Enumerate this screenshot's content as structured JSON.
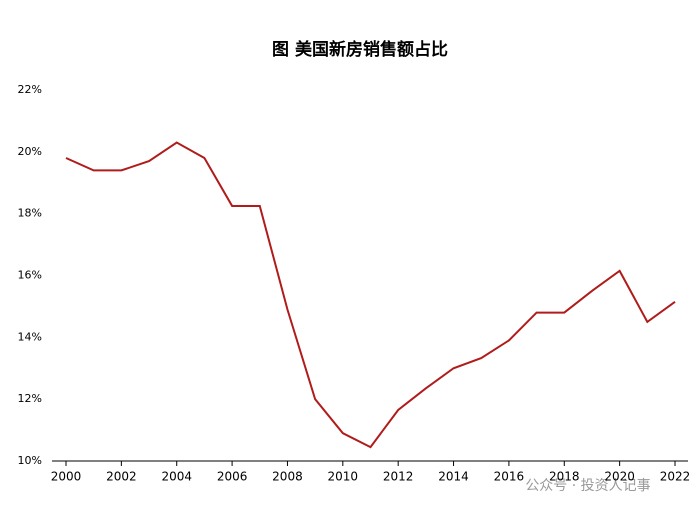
{
  "chart_data": {
    "type": "line",
    "title": "图 美国新房销售额占比",
    "x": [
      2000,
      2001,
      2002,
      2003,
      2004,
      2005,
      2006,
      2007,
      2008,
      2009,
      2010,
      2011,
      2012,
      2013,
      2014,
      2015,
      2016,
      2017,
      2018,
      2019,
      2020,
      2021,
      2022
    ],
    "series": [
      {
        "name": null,
        "color": "#b01c1c",
        "values": [
          19.8,
          19.4,
          19.4,
          19.7,
          20.3,
          19.8,
          18.25,
          18.25,
          14.9,
          12.0,
          10.9,
          10.45,
          11.65,
          12.35,
          13.0,
          13.33,
          13.9,
          14.8,
          14.8,
          15.5,
          16.15,
          14.5,
          15.15
        ]
      }
    ],
    "xlim": [
      2000,
      2022
    ],
    "xticks": [
      2000,
      2002,
      2004,
      2006,
      2008,
      2010,
      2012,
      2014,
      2016,
      2018,
      2020,
      2022
    ],
    "ylim": [
      10,
      22
    ],
    "yticks": [
      {
        "value": 10,
        "label": "10%"
      },
      {
        "value": 12,
        "label": "12%"
      },
      {
        "value": 14,
        "label": "14%"
      },
      {
        "value": 16,
        "label": "16%"
      },
      {
        "value": 18,
        "label": "18%"
      },
      {
        "value": 20,
        "label": "20%"
      },
      {
        "value": 22,
        "label": "22%"
      }
    ],
    "grid": false,
    "watermark": "公众号 · 投资人记事"
  }
}
